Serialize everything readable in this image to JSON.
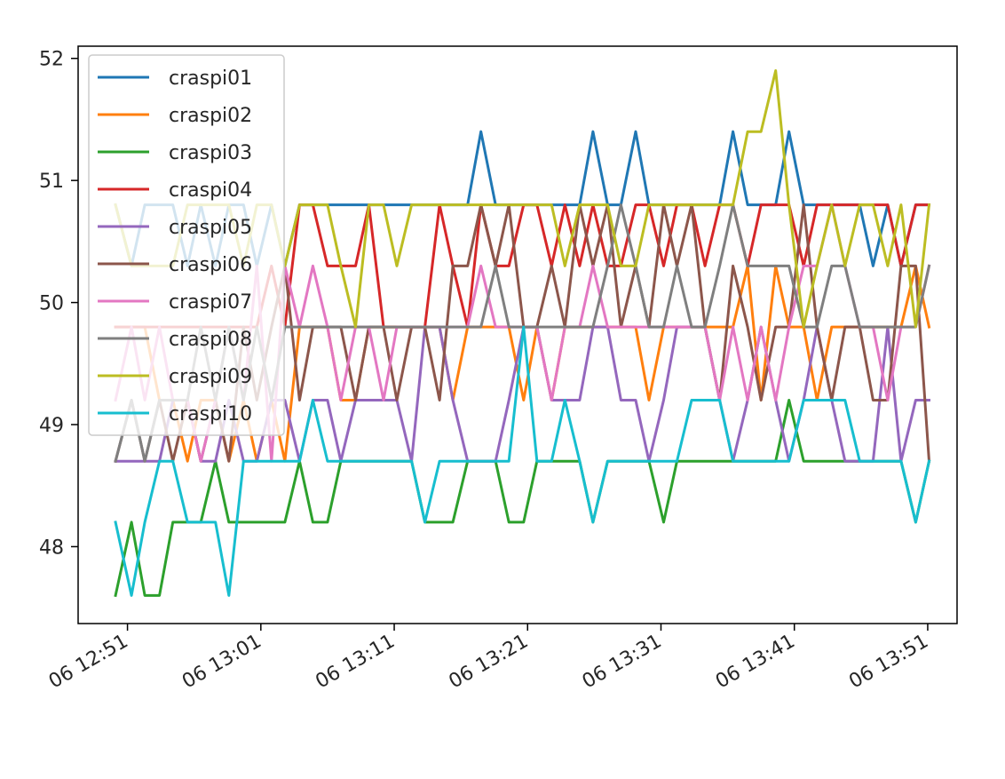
{
  "chart_data": {
    "type": "line",
    "x_tick_labels": [
      "06 12:51",
      "06 13:01",
      "06 13:11",
      "06 13:21",
      "06 13:31",
      "06 13:41",
      "06 13:51"
    ],
    "x_tick_minutes": [
      0,
      10,
      20,
      30,
      40,
      50,
      60
    ],
    "x_range_minutes": [
      -3.7,
      62.2
    ],
    "y_ticks": [
      48,
      49,
      50,
      51,
      52
    ],
    "ylim": [
      47.37,
      52.1
    ],
    "grid": false,
    "legend_position": "upper-left",
    "x": [
      -0.9,
      0.3,
      1.3,
      2.4,
      3.4,
      4.5,
      5.5,
      6.6,
      7.6,
      8.7,
      9.7,
      10.8,
      11.8,
      12.9,
      13.9,
      15.0,
      16.0,
      17.1,
      18.1,
      19.2,
      20.2,
      21.3,
      22.3,
      23.4,
      24.4,
      25.5,
      26.5,
      27.6,
      28.6,
      29.7,
      30.7,
      31.8,
      32.8,
      33.9,
      34.9,
      36.0,
      37.0,
      38.1,
      39.1,
      40.2,
      41.2,
      42.3,
      43.3,
      44.4,
      45.4,
      46.5,
      47.5,
      48.6,
      49.6,
      50.7,
      51.7,
      52.8,
      53.8,
      54.9,
      55.9,
      57.0,
      58.0,
      59.1,
      60.1
    ],
    "series": [
      {
        "name": "craspi01",
        "color": "#1f77b4",
        "values": [
          50.8,
          50.3,
          50.8,
          50.8,
          50.8,
          50.3,
          50.8,
          50.3,
          50.8,
          50.8,
          50.3,
          50.8,
          50.3,
          50.8,
          50.8,
          50.8,
          50.8,
          50.8,
          50.8,
          50.8,
          50.8,
          50.8,
          50.8,
          50.8,
          50.8,
          50.8,
          51.4,
          50.8,
          50.8,
          50.8,
          50.8,
          50.8,
          50.8,
          50.8,
          51.4,
          50.8,
          50.8,
          51.4,
          50.8,
          50.8,
          50.8,
          50.8,
          50.8,
          50.8,
          51.4,
          50.8,
          50.8,
          50.8,
          51.4,
          50.8,
          50.8,
          50.8,
          50.8,
          50.8,
          50.3,
          50.8,
          50.3,
          50.8,
          50.8
        ]
      },
      {
        "name": "craspi02",
        "color": "#ff7f0e",
        "values": [
          49.8,
          49.8,
          49.8,
          49.2,
          49.2,
          48.7,
          49.2,
          49.2,
          48.7,
          49.2,
          48.7,
          49.2,
          48.7,
          49.8,
          49.8,
          49.8,
          49.2,
          49.2,
          49.8,
          49.8,
          49.8,
          49.8,
          49.8,
          49.8,
          49.2,
          49.8,
          49.8,
          49.8,
          49.8,
          49.2,
          49.8,
          49.2,
          49.8,
          49.8,
          49.8,
          49.8,
          49.8,
          49.8,
          49.2,
          49.8,
          49.8,
          49.8,
          49.8,
          49.8,
          49.8,
          50.3,
          49.2,
          50.3,
          49.8,
          49.8,
          49.2,
          49.8,
          49.8,
          49.8,
          49.8,
          49.8,
          49.8,
          50.3,
          49.8
        ]
      },
      {
        "name": "craspi03",
        "color": "#2ca02c",
        "values": [
          47.6,
          48.2,
          47.6,
          47.6,
          48.2,
          48.2,
          48.2,
          48.7,
          48.2,
          48.2,
          48.2,
          48.2,
          48.2,
          48.7,
          48.2,
          48.2,
          48.7,
          48.7,
          48.7,
          48.7,
          48.7,
          48.7,
          48.2,
          48.2,
          48.2,
          48.7,
          48.7,
          48.7,
          48.2,
          48.2,
          48.7,
          48.7,
          48.7,
          48.7,
          48.2,
          48.7,
          48.7,
          48.7,
          48.7,
          48.2,
          48.7,
          48.7,
          48.7,
          48.7,
          48.7,
          48.7,
          48.7,
          48.7,
          49.2,
          48.7,
          48.7,
          48.7,
          48.7,
          48.7,
          48.7,
          48.7,
          48.7,
          48.2,
          48.7
        ]
      },
      {
        "name": "craspi04",
        "color": "#d62728",
        "values": [
          49.8,
          49.8,
          49.8,
          49.8,
          49.8,
          49.8,
          49.8,
          49.8,
          49.8,
          49.8,
          49.8,
          50.3,
          49.8,
          50.8,
          50.8,
          50.3,
          50.3,
          50.3,
          50.8,
          49.8,
          49.8,
          49.8,
          49.8,
          50.8,
          50.3,
          49.8,
          50.8,
          50.3,
          50.3,
          50.8,
          50.8,
          50.3,
          50.8,
          50.3,
          50.8,
          50.3,
          50.3,
          50.8,
          50.8,
          50.3,
          50.8,
          50.8,
          50.3,
          50.8,
          50.8,
          50.3,
          50.8,
          50.8,
          50.8,
          50.3,
          50.8,
          50.8,
          50.8,
          50.8,
          50.8,
          50.8,
          50.3,
          50.8,
          50.8
        ]
      },
      {
        "name": "craspi05",
        "color": "#9467bd",
        "values": [
          48.7,
          48.7,
          48.7,
          48.7,
          49.2,
          49.2,
          48.7,
          48.7,
          49.2,
          48.7,
          48.7,
          49.2,
          49.2,
          48.7,
          49.2,
          49.2,
          48.7,
          49.2,
          49.2,
          49.2,
          49.2,
          48.7,
          49.8,
          49.8,
          49.2,
          48.7,
          48.7,
          48.7,
          49.2,
          49.8,
          49.8,
          49.2,
          49.2,
          49.2,
          49.8,
          49.8,
          49.2,
          49.2,
          48.7,
          49.2,
          49.8,
          49.8,
          49.8,
          49.2,
          48.7,
          49.2,
          49.8,
          49.2,
          48.7,
          49.2,
          49.8,
          49.2,
          48.7,
          48.7,
          48.7,
          49.8,
          48.7,
          49.2,
          49.2
        ]
      },
      {
        "name": "craspi06",
        "color": "#8c564b",
        "values": [
          48.7,
          49.2,
          48.7,
          49.2,
          48.7,
          49.2,
          48.7,
          49.2,
          48.7,
          49.8,
          49.2,
          49.8,
          50.3,
          49.2,
          49.8,
          49.8,
          49.8,
          49.2,
          49.8,
          49.8,
          49.2,
          49.8,
          49.8,
          49.2,
          50.3,
          50.3,
          50.8,
          50.3,
          50.8,
          49.8,
          49.8,
          50.3,
          49.8,
          50.8,
          50.3,
          50.8,
          49.8,
          50.3,
          49.8,
          50.8,
          50.3,
          50.8,
          49.8,
          49.2,
          50.3,
          49.8,
          49.2,
          49.8,
          49.8,
          50.8,
          49.8,
          49.2,
          49.8,
          49.8,
          49.2,
          49.2,
          50.3,
          50.3,
          48.7
        ]
      },
      {
        "name": "craspi07",
        "color": "#e377c2",
        "values": [
          49.2,
          49.8,
          49.2,
          49.8,
          49.2,
          49.2,
          48.7,
          49.2,
          49.8,
          49.2,
          50.3,
          48.7,
          50.3,
          49.8,
          50.3,
          49.8,
          49.2,
          49.8,
          49.8,
          49.2,
          49.8,
          49.8,
          49.8,
          49.8,
          49.8,
          49.8,
          50.3,
          49.8,
          49.8,
          49.8,
          49.8,
          49.2,
          49.8,
          49.8,
          50.3,
          49.8,
          49.8,
          49.8,
          49.8,
          49.8,
          49.8,
          49.8,
          49.8,
          49.2,
          49.8,
          49.2,
          49.8,
          49.2,
          49.8,
          50.3,
          50.3,
          50.8,
          50.3,
          49.8,
          49.8,
          49.2,
          49.8,
          49.8,
          50.3
        ]
      },
      {
        "name": "craspi08",
        "color": "#7f7f7f",
        "values": [
          48.7,
          49.2,
          48.7,
          49.2,
          49.2,
          49.2,
          49.8,
          49.2,
          49.8,
          49.2,
          49.8,
          49.2,
          49.8,
          49.8,
          49.8,
          49.8,
          49.8,
          49.8,
          49.8,
          49.8,
          49.8,
          49.8,
          49.8,
          49.8,
          49.8,
          49.8,
          49.8,
          50.3,
          49.8,
          49.8,
          49.8,
          49.8,
          49.8,
          49.8,
          49.8,
          50.3,
          50.8,
          50.3,
          49.8,
          49.8,
          50.3,
          49.8,
          49.8,
          50.3,
          50.8,
          50.3,
          50.3,
          50.3,
          50.3,
          49.8,
          49.8,
          50.3,
          50.3,
          49.8,
          49.8,
          49.8,
          49.8,
          49.8,
          50.3
        ]
      },
      {
        "name": "craspi09",
        "color": "#bcbd22",
        "values": [
          50.8,
          50.3,
          50.3,
          50.3,
          50.3,
          50.8,
          50.8,
          50.8,
          50.8,
          50.3,
          50.8,
          50.8,
          50.3,
          50.8,
          50.8,
          50.8,
          50.3,
          49.8,
          50.8,
          50.8,
          50.3,
          50.8,
          50.8,
          50.8,
          50.8,
          50.8,
          50.8,
          50.8,
          50.8,
          50.8,
          50.8,
          50.8,
          50.3,
          50.8,
          50.8,
          50.8,
          50.3,
          50.3,
          50.8,
          50.8,
          50.8,
          50.8,
          50.8,
          50.8,
          50.8,
          51.4,
          51.4,
          51.9,
          50.8,
          49.8,
          50.3,
          50.8,
          50.3,
          50.8,
          50.8,
          50.3,
          50.8,
          49.8,
          50.8
        ]
      },
      {
        "name": "craspi10",
        "color": "#17becf",
        "values": [
          48.2,
          47.6,
          48.2,
          48.7,
          48.7,
          48.2,
          48.2,
          48.2,
          47.6,
          48.7,
          48.7,
          48.7,
          48.7,
          48.7,
          49.2,
          48.7,
          48.7,
          48.7,
          48.7,
          48.7,
          48.7,
          48.7,
          48.2,
          48.7,
          48.7,
          48.7,
          48.7,
          48.7,
          48.7,
          49.8,
          48.7,
          48.7,
          49.2,
          48.7,
          48.2,
          48.7,
          48.7,
          48.7,
          48.7,
          48.7,
          48.7,
          49.2,
          49.2,
          49.2,
          48.7,
          48.7,
          48.7,
          48.7,
          48.7,
          49.2,
          49.2,
          49.2,
          49.2,
          48.7,
          48.7,
          48.7,
          48.7,
          48.2,
          48.7
        ]
      }
    ]
  }
}
